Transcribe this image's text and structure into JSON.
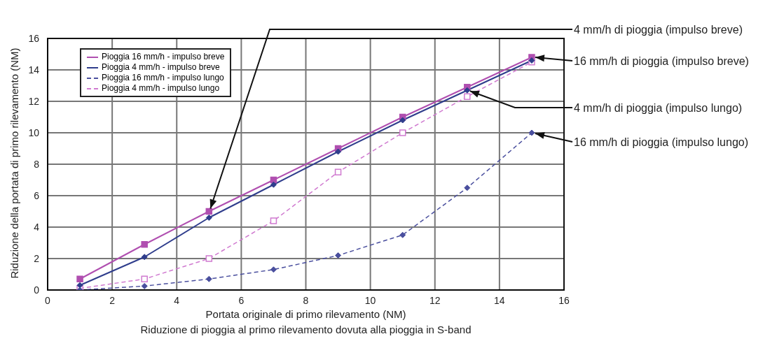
{
  "chart_data": {
    "type": "line",
    "xlabel": "Portata originale di primo rilevamento (NM)",
    "ylabel": "Riduzione della portata di primo rilevamento (NM)",
    "x": [
      1,
      3,
      5,
      7,
      9,
      11,
      13,
      15
    ],
    "series": [
      {
        "name": "Pioggia 16 mm/h - impulso breve",
        "color": "#b04fb0",
        "marker": "square",
        "line_style": "solid",
        "values": [
          0.7,
          2.9,
          5.0,
          7.0,
          9.0,
          11.0,
          12.9,
          14.8
        ]
      },
      {
        "name": "Pioggia 4 mm/h - impulso breve",
        "color": "#2f3d8c",
        "marker": "diamond",
        "line_style": "solid",
        "values": [
          0.3,
          2.1,
          4.6,
          6.7,
          8.8,
          10.8,
          12.7,
          14.6
        ]
      },
      {
        "name": "Pioggia 16 mm/h - impulso lungo",
        "color": "#4a4f9e",
        "marker": "diamond",
        "line_style": "dashed",
        "values": [
          0.0,
          0.25,
          0.7,
          1.3,
          2.2,
          3.5,
          6.5,
          10.0
        ]
      },
      {
        "name": "Pioggia 4 mm/h - impulso lungo",
        "color": "#d07ad0",
        "marker": "square",
        "line_style": "dashed",
        "values": [
          0.1,
          0.7,
          2.0,
          4.4,
          7.5,
          10.0,
          12.3,
          14.5
        ]
      }
    ],
    "xlim": [
      0,
      16
    ],
    "xticks": [
      0,
      2,
      4,
      6,
      8,
      10,
      12,
      14,
      16
    ],
    "ylim": [
      0,
      16
    ],
    "yticks": [
      0,
      2,
      4,
      6,
      8,
      10,
      12,
      14,
      16
    ],
    "grid": true,
    "legend": "top left",
    "annotations": [
      {
        "text": "4 mm/h di pioggia (impulso breve)",
        "x": 5,
        "y": 5.0
      },
      {
        "text": "16 mm/h di pioggia (impulso breve)",
        "x": 15,
        "y": 14.8
      },
      {
        "text": "4 mm/h di pioggia (impulso lungo)",
        "x": 13,
        "y": 12.7
      },
      {
        "text": "16 mm/h di pioggia (impulso lungo)",
        "x": 15,
        "y": 10.0
      },
      "Riduzione di pioggia al primo rilevamento dovuta alla pioggia in S-band"
    ]
  }
}
